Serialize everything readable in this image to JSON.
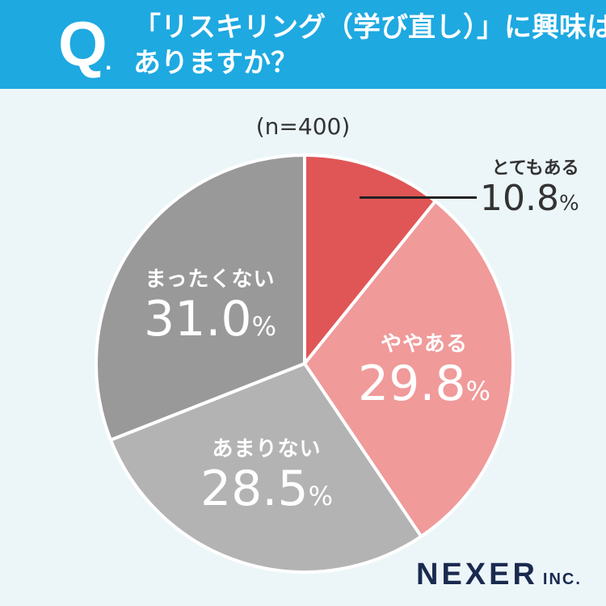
{
  "header": {
    "q_mark": "Q",
    "q_dot": ".",
    "question_line1": "「リスキリング（学び直し）」に興味は",
    "question_line2": "ありますか？"
  },
  "sample_size": "(n=400)",
  "percent_unit": "%",
  "chart_data": {
    "type": "pie",
    "title": "「リスキリング（学び直し）」に興味はありますか？",
    "subtitle": "(n=400)",
    "slices": [
      {
        "label": "とてもある",
        "value": 10.8,
        "value_text": "10.8",
        "color": "#e05555"
      },
      {
        "label": "ややある",
        "value": 29.8,
        "value_text": "29.8",
        "color": "#f09a9a"
      },
      {
        "label": "あまりない",
        "value": 28.5,
        "value_text": "28.5",
        "color": "#b3b3b3"
      },
      {
        "label": "まったくない",
        "value": 31.0,
        "value_text": "31.0",
        "color": "#999999"
      }
    ],
    "start": "12 o'clock, clockwise"
  },
  "logo": {
    "main": "NEXER",
    "suffix": "INC."
  },
  "colors": {
    "header_bg": "#1ea9e1",
    "background": "#ecf6f9",
    "logo": "#1a2a4f"
  }
}
